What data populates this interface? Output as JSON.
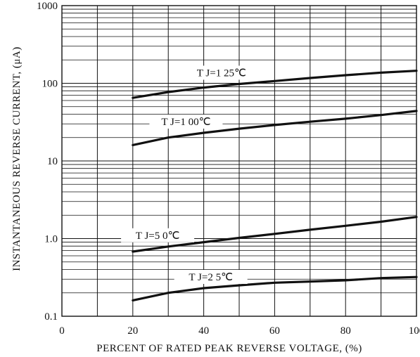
{
  "chart_data": {
    "type": "line",
    "xlabel": "PERCENT  OF  RATED    PEAK  REVERSE  VOLTAGE,  (%)",
    "ylabel": "INSTANTANEOUS REVERSE CURRENT, (μA)",
    "xlim": [
      0,
      100
    ],
    "ylim": [
      0.1,
      1000
    ],
    "y_scale": "log",
    "grid": true,
    "x_ticks": [
      "0",
      "20",
      "40",
      "60",
      "80",
      "100"
    ],
    "y_ticks": [
      "0.1",
      "1.0",
      "10",
      "100",
      "1000"
    ],
    "series": [
      {
        "name": "T J=1 25℃",
        "x": [
          20,
          30,
          40,
          50,
          60,
          70,
          80,
          90,
          100
        ],
        "y": [
          65,
          77,
          88,
          98,
          107,
          117,
          127,
          137,
          145
        ]
      },
      {
        "name": "T J=1 00℃",
        "x": [
          20,
          30,
          40,
          50,
          60,
          70,
          80,
          90,
          100
        ],
        "y": [
          16,
          20,
          23,
          26,
          29,
          32,
          35,
          39,
          44
        ]
      },
      {
        "name": "T J=5 0℃",
        "x": [
          20,
          30,
          40,
          50,
          60,
          70,
          80,
          90,
          100
        ],
        "y": [
          0.68,
          0.79,
          0.9,
          1.02,
          1.15,
          1.3,
          1.46,
          1.65,
          1.9
        ]
      },
      {
        "name": "T J=2 5℃",
        "x": [
          20,
          30,
          40,
          50,
          60,
          70,
          80,
          90,
          100
        ],
        "y": [
          0.16,
          0.2,
          0.23,
          0.25,
          0.27,
          0.28,
          0.29,
          0.31,
          0.32
        ]
      }
    ]
  }
}
